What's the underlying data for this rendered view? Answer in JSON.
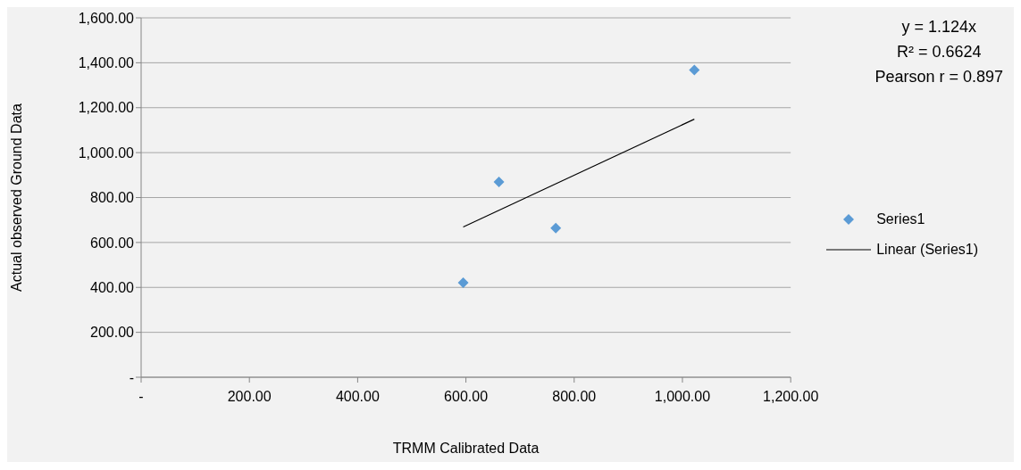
{
  "chart_data": {
    "type": "scatter",
    "xlabel": "TRMM Calibrated Data",
    "ylabel": "Actual observed Ground Data",
    "annotations": [
      "y = 1.124x",
      "R² = 0.6624",
      "Pearson r = 0.897"
    ],
    "series": [
      {
        "name": "Series1",
        "color": "#5b9bd5",
        "marker": "diamond",
        "x": [
          595,
          661,
          766,
          1022
        ],
        "values": [
          421,
          869,
          664,
          1368
        ]
      },
      {
        "name": "Linear (Series1)",
        "type": "line",
        "color": "#000000",
        "marker": "none",
        "x": [
          595,
          1022
        ],
        "values": [
          669,
          1149
        ]
      }
    ],
    "xlim": [
      0,
      1200
    ],
    "xticks": [
      {
        "value": 0,
        "label": "-"
      },
      {
        "value": 200,
        "label": "200.00"
      },
      {
        "value": 400,
        "label": "400.00"
      },
      {
        "value": 600,
        "label": "600.00"
      },
      {
        "value": 800,
        "label": "800.00"
      },
      {
        "value": 1000,
        "label": "1,000.00"
      },
      {
        "value": 1200,
        "label": "1,200.00"
      }
    ],
    "ylim": [
      0,
      1600
    ],
    "yticks": [
      {
        "value": 0,
        "label": "-"
      },
      {
        "value": 200,
        "label": "200.00"
      },
      {
        "value": 400,
        "label": "400.00"
      },
      {
        "value": 600,
        "label": "600.00"
      },
      {
        "value": 800,
        "label": "800.00"
      },
      {
        "value": 1000,
        "label": "1,000.00"
      },
      {
        "value": 1200,
        "label": "1,200.00"
      },
      {
        "value": 1400,
        "label": "1,400.00"
      },
      {
        "value": 1600,
        "label": "1,600.00"
      }
    ],
    "grid": "y",
    "legend": "right"
  }
}
